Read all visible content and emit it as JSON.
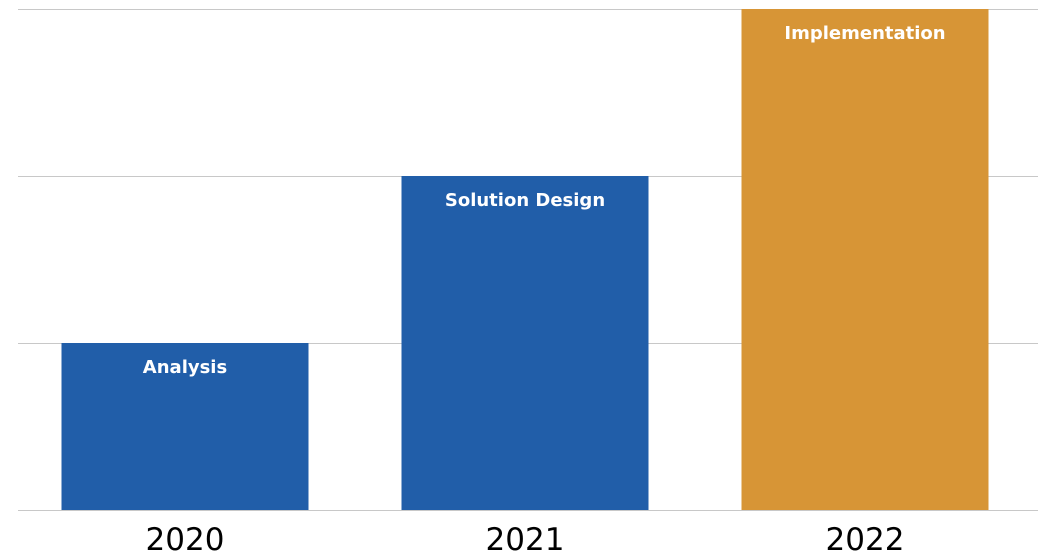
{
  "chart_data": {
    "type": "bar",
    "title": "",
    "xlabel": "",
    "ylabel": "",
    "categories": [
      "2020",
      "2021",
      "2022"
    ],
    "values": [
      1,
      2,
      3
    ],
    "ylim": [
      0,
      3
    ],
    "grid": true,
    "bar_labels": [
      "Analysis",
      "Solution Design",
      "Implementation"
    ],
    "bar_colors": [
      "#215EA9",
      "#215EA9",
      "#D79536"
    ],
    "grid_color": "#c8c8c8"
  }
}
